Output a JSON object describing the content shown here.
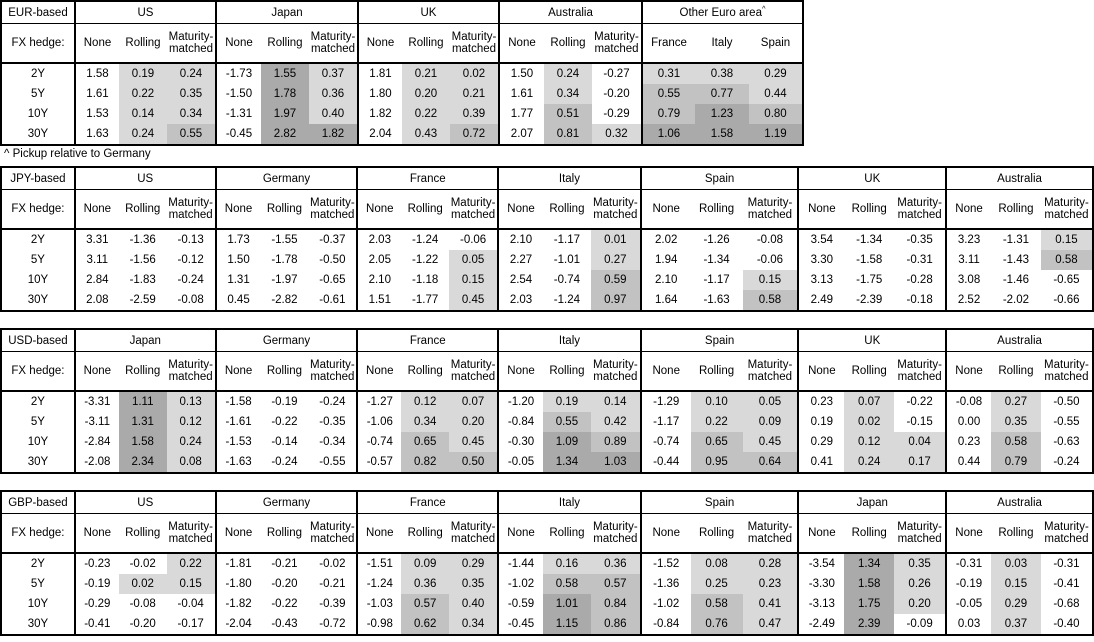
{
  "page": {
    "footnote": "^ Pickup relative to Germany",
    "fx_hedge_label": "FX hedge:",
    "default_sub_headers": [
      "None",
      "Rolling",
      "Maturity-matched"
    ],
    "tenors": [
      "2Y",
      "5Y",
      "10Y",
      "30Y"
    ]
  },
  "colors": {
    "border": "#000000",
    "cell_white": "#ffffff",
    "shade_light": "#d9d9d9",
    "shade_medium": "#c2c2c2",
    "shade_dark": "#aaaaaa"
  },
  "tables": [
    {
      "id": "eur-based",
      "base": "EUR-based",
      "groups": [
        {
          "country": "US",
          "rows": [
            [
              "1.58",
              "0.19",
              "0.24"
            ],
            [
              "1.61",
              "0.22",
              "0.35"
            ],
            [
              "1.53",
              "0.14",
              "0.34"
            ],
            [
              "1.63",
              "0.24",
              "0.55"
            ]
          ]
        },
        {
          "country": "Japan",
          "rows": [
            [
              "-1.73",
              "1.55",
              "0.37"
            ],
            [
              "-1.50",
              "1.78",
              "0.36"
            ],
            [
              "-1.31",
              "1.97",
              "0.40"
            ],
            [
              "-0.45",
              "2.82",
              "1.82"
            ]
          ]
        },
        {
          "country": "UK",
          "rows": [
            [
              "1.81",
              "0.21",
              "0.02"
            ],
            [
              "1.80",
              "0.20",
              "0.21"
            ],
            [
              "1.82",
              "0.22",
              "0.39"
            ],
            [
              "2.04",
              "0.43",
              "0.72"
            ]
          ]
        },
        {
          "country": "Australia",
          "rows": [
            [
              "1.50",
              "0.24",
              "-0.27"
            ],
            [
              "1.61",
              "0.34",
              "-0.20"
            ],
            [
              "1.77",
              "0.51",
              "-0.29"
            ],
            [
              "2.07",
              "0.81",
              "0.32"
            ]
          ]
        },
        {
          "country": "Other Euro area",
          "footnote_marker": "^",
          "sub_headers": [
            "France",
            "Italy",
            "Spain"
          ],
          "rows": [
            [
              "0.31",
              "0.38",
              "0.29"
            ],
            [
              "0.55",
              "0.77",
              "0.44"
            ],
            [
              "0.79",
              "1.23",
              "0.80"
            ],
            [
              "1.06",
              "1.58",
              "1.19"
            ]
          ]
        }
      ]
    },
    {
      "id": "jpy-based",
      "base": "JPY-based",
      "groups": [
        {
          "country": "US",
          "rows": [
            [
              "3.31",
              "-1.36",
              "-0.13"
            ],
            [
              "3.11",
              "-1.56",
              "-0.12"
            ],
            [
              "2.84",
              "-1.83",
              "-0.24"
            ],
            [
              "2.08",
              "-2.59",
              "-0.08"
            ]
          ]
        },
        {
          "country": "Germany",
          "rows": [
            [
              "1.73",
              "-1.55",
              "-0.37"
            ],
            [
              "1.50",
              "-1.78",
              "-0.50"
            ],
            [
              "1.31",
              "-1.97",
              "-0.65"
            ],
            [
              "0.45",
              "-2.82",
              "-0.61"
            ]
          ]
        },
        {
          "country": "France",
          "rows": [
            [
              "2.03",
              "-1.24",
              "-0.06"
            ],
            [
              "2.05",
              "-1.22",
              "0.05"
            ],
            [
              "2.10",
              "-1.18",
              "0.15"
            ],
            [
              "1.51",
              "-1.77",
              "0.45"
            ]
          ]
        },
        {
          "country": "Italy",
          "rows": [
            [
              "2.10",
              "-1.17",
              "0.01"
            ],
            [
              "2.27",
              "-1.01",
              "0.27"
            ],
            [
              "2.54",
              "-0.74",
              "0.59"
            ],
            [
              "2.03",
              "-1.24",
              "0.97"
            ]
          ]
        },
        {
          "country": "Spain",
          "rows": [
            [
              "2.02",
              "-1.26",
              "-0.08"
            ],
            [
              "1.94",
              "-1.34",
              "-0.06"
            ],
            [
              "2.10",
              "-1.17",
              "0.15"
            ],
            [
              "1.64",
              "-1.63",
              "0.58"
            ]
          ]
        },
        {
          "country": "UK",
          "rows": [
            [
              "3.54",
              "-1.34",
              "-0.35"
            ],
            [
              "3.30",
              "-1.58",
              "-0.31"
            ],
            [
              "3.13",
              "-1.75",
              "-0.28"
            ],
            [
              "2.49",
              "-2.39",
              "-0.18"
            ]
          ]
        },
        {
          "country": "Australia",
          "rows": [
            [
              "3.23",
              "-1.31",
              "0.15"
            ],
            [
              "3.11",
              "-1.43",
              "0.58"
            ],
            [
              "3.08",
              "-1.46",
              "-0.65"
            ],
            [
              "2.52",
              "-2.02",
              "-0.66"
            ]
          ]
        }
      ]
    },
    {
      "id": "usd-based",
      "base": "USD-based",
      "groups": [
        {
          "country": "Japan",
          "rows": [
            [
              "-3.31",
              "1.11",
              "0.13"
            ],
            [
              "-3.11",
              "1.31",
              "0.12"
            ],
            [
              "-2.84",
              "1.58",
              "0.24"
            ],
            [
              "-2.08",
              "2.34",
              "0.08"
            ]
          ]
        },
        {
          "country": "Germany",
          "rows": [
            [
              "-1.58",
              "-0.19",
              "-0.24"
            ],
            [
              "-1.61",
              "-0.22",
              "-0.35"
            ],
            [
              "-1.53",
              "-0.14",
              "-0.34"
            ],
            [
              "-1.63",
              "-0.24",
              "-0.55"
            ]
          ]
        },
        {
          "country": "France",
          "rows": [
            [
              "-1.27",
              "0.12",
              "0.07"
            ],
            [
              "-1.06",
              "0.34",
              "0.20"
            ],
            [
              "-0.74",
              "0.65",
              "0.45"
            ],
            [
              "-0.57",
              "0.82",
              "0.50"
            ]
          ]
        },
        {
          "country": "Italy",
          "rows": [
            [
              "-1.20",
              "0.19",
              "0.14"
            ],
            [
              "-0.84",
              "0.55",
              "0.42"
            ],
            [
              "-0.30",
              "1.09",
              "0.89"
            ],
            [
              "-0.05",
              "1.34",
              "1.03"
            ]
          ]
        },
        {
          "country": "Spain",
          "rows": [
            [
              "-1.29",
              "0.10",
              "0.05"
            ],
            [
              "-1.17",
              "0.22",
              "0.09"
            ],
            [
              "-0.74",
              "0.65",
              "0.45"
            ],
            [
              "-0.44",
              "0.95",
              "0.64"
            ]
          ]
        },
        {
          "country": "UK",
          "rows": [
            [
              "0.23",
              "0.07",
              "-0.22"
            ],
            [
              "0.19",
              "0.02",
              "-0.15"
            ],
            [
              "0.29",
              "0.12",
              "0.04"
            ],
            [
              "0.41",
              "0.24",
              "0.17"
            ]
          ]
        },
        {
          "country": "Australia",
          "rows": [
            [
              "-0.08",
              "0.27",
              "-0.50"
            ],
            [
              "0.00",
              "0.35",
              "-0.55"
            ],
            [
              "0.23",
              "0.58",
              "-0.63"
            ],
            [
              "0.44",
              "0.79",
              "-0.24"
            ]
          ]
        }
      ]
    },
    {
      "id": "gbp-based",
      "base": "GBP-based",
      "groups": [
        {
          "country": "US",
          "rows": [
            [
              "-0.23",
              "-0.02",
              "0.22"
            ],
            [
              "-0.19",
              "0.02",
              "0.15"
            ],
            [
              "-0.29",
              "-0.08",
              "-0.04"
            ],
            [
              "-0.41",
              "-0.20",
              "-0.17"
            ]
          ]
        },
        {
          "country": "Germany",
          "rows": [
            [
              "-1.81",
              "-0.21",
              "-0.02"
            ],
            [
              "-1.80",
              "-0.20",
              "-0.21"
            ],
            [
              "-1.82",
              "-0.22",
              "-0.39"
            ],
            [
              "-2.04",
              "-0.43",
              "-0.72"
            ]
          ]
        },
        {
          "country": "France",
          "rows": [
            [
              "-1.51",
              "0.09",
              "0.29"
            ],
            [
              "-1.24",
              "0.36",
              "0.35"
            ],
            [
              "-1.03",
              "0.57",
              "0.40"
            ],
            [
              "-0.98",
              "0.62",
              "0.34"
            ]
          ]
        },
        {
          "country": "Italy",
          "rows": [
            [
              "-1.44",
              "0.16",
              "0.36"
            ],
            [
              "-1.02",
              "0.58",
              "0.57"
            ],
            [
              "-0.59",
              "1.01",
              "0.84"
            ],
            [
              "-0.45",
              "1.15",
              "0.86"
            ]
          ]
        },
        {
          "country": "Spain",
          "rows": [
            [
              "-1.52",
              "0.08",
              "0.28"
            ],
            [
              "-1.36",
              "0.25",
              "0.23"
            ],
            [
              "-1.02",
              "0.58",
              "0.41"
            ],
            [
              "-0.84",
              "0.76",
              "0.47"
            ]
          ]
        },
        {
          "country": "Japan",
          "rows": [
            [
              "-3.54",
              "1.34",
              "0.35"
            ],
            [
              "-3.30",
              "1.58",
              "0.26"
            ],
            [
              "-3.13",
              "1.75",
              "0.20"
            ],
            [
              "-2.49",
              "2.39",
              "-0.09"
            ]
          ]
        },
        {
          "country": "Australia",
          "rows": [
            [
              "-0.31",
              "0.03",
              "-0.31"
            ],
            [
              "-0.19",
              "0.15",
              "-0.41"
            ],
            [
              "-0.05",
              "0.29",
              "-0.68"
            ],
            [
              "0.03",
              "0.37",
              "-0.40"
            ]
          ]
        }
      ]
    }
  ]
}
